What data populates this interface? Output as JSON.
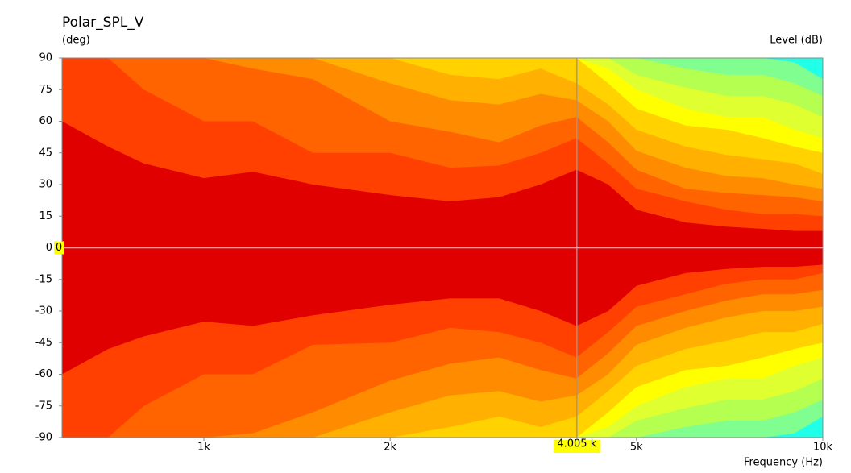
{
  "chart_data": {
    "type": "contour",
    "title": "Polar_SPL_V",
    "y_label": "(deg)",
    "z_label": "Level  (dB)",
    "x_label": "Frequency  (Hz)",
    "x_log": true,
    "xlim": [
      590,
      10000
    ],
    "xticks": [
      {
        "value": 1000,
        "label": "1k"
      },
      {
        "value": 2000,
        "label": "2k"
      },
      {
        "value": 5000,
        "label": "5k"
      },
      {
        "value": 10000,
        "label": "10k"
      }
    ],
    "ylim": [
      -90,
      90
    ],
    "yticks": [
      90,
      75,
      60,
      45,
      30,
      15,
      0,
      -15,
      -30,
      -45,
      -60,
      -75,
      -90
    ],
    "cursor": {
      "x": {
        "value": 4005,
        "label": "4.005 k"
      },
      "y": 0
    },
    "background_color": "#20ffe8",
    "x": [
      590,
      700,
      800,
      1000,
      1200,
      1500,
      2000,
      2500,
      3000,
      3500,
      4000,
      4500,
      5000,
      6000,
      7000,
      8000,
      9000,
      10000
    ],
    "series": [
      {
        "color": "#80ff90",
        "upper": [
          90,
          90,
          90,
          90,
          90,
          90,
          90,
          90,
          90,
          90,
          90,
          90,
          90,
          90,
          90,
          90,
          88,
          80
        ],
        "lower": [
          -90,
          -90,
          -90,
          -90,
          -90,
          -90,
          -90,
          -90,
          -90,
          -90,
          -90,
          -90,
          -90,
          -90,
          -90,
          -90,
          -88,
          -80
        ]
      },
      {
        "color": "#b4ff50",
        "upper": [
          90,
          90,
          90,
          90,
          90,
          90,
          90,
          90,
          90,
          90,
          90,
          90,
          90,
          85,
          82,
          82,
          78,
          72
        ],
        "lower": [
          -90,
          -90,
          -90,
          -90,
          -90,
          -90,
          -90,
          -90,
          -90,
          -90,
          -90,
          -90,
          -90,
          -85,
          -82,
          -82,
          -78,
          -72
        ]
      },
      {
        "color": "#e0ff30",
        "upper": [
          90,
          90,
          90,
          90,
          90,
          90,
          90,
          90,
          90,
          90,
          90,
          90,
          82,
          76,
          72,
          72,
          68,
          62
        ],
        "lower": [
          -90,
          -90,
          -90,
          -90,
          -90,
          -90,
          -90,
          -90,
          -90,
          -90,
          -90,
          -90,
          -82,
          -76,
          -72,
          -72,
          -68,
          -62
        ]
      },
      {
        "color": "#ffff00",
        "upper": [
          90,
          90,
          90,
          90,
          90,
          90,
          90,
          90,
          90,
          90,
          90,
          85,
          75,
          66,
          62,
          62,
          56,
          52
        ],
        "lower": [
          -90,
          -90,
          -90,
          -90,
          -90,
          -90,
          -90,
          -90,
          -90,
          -90,
          -90,
          -85,
          -75,
          -66,
          -62,
          -62,
          -56,
          -52
        ]
      },
      {
        "color": "#ffd200",
        "upper": [
          90,
          90,
          90,
          90,
          90,
          90,
          90,
          90,
          90,
          90,
          90,
          78,
          66,
          58,
          56,
          52,
          48,
          45
        ],
        "lower": [
          -90,
          -90,
          -90,
          -90,
          -90,
          -90,
          -90,
          -90,
          -90,
          -90,
          -90,
          -78,
          -66,
          -58,
          -56,
          -52,
          -48,
          -45
        ]
      },
      {
        "color": "#ffb000",
        "upper": [
          90,
          90,
          90,
          90,
          90,
          90,
          90,
          82,
          80,
          85,
          78,
          68,
          56,
          48,
          44,
          42,
          40,
          35
        ],
        "lower": [
          -90,
          -90,
          -90,
          -90,
          -90,
          -90,
          -90,
          -85,
          -80,
          -85,
          -80,
          -68,
          -56,
          -48,
          -44,
          -40,
          -40,
          -36
        ]
      },
      {
        "color": "#ff8c00",
        "upper": [
          90,
          90,
          90,
          90,
          90,
          90,
          78,
          70,
          68,
          73,
          70,
          60,
          46,
          38,
          34,
          33,
          30,
          28
        ],
        "lower": [
          -90,
          -90,
          -90,
          -90,
          -90,
          -90,
          -78,
          -70,
          -68,
          -73,
          -70,
          -60,
          -46,
          -38,
          -33,
          -30,
          -30,
          -28
        ]
      },
      {
        "color": "#ff6400",
        "upper": [
          90,
          90,
          90,
          90,
          85,
          80,
          60,
          55,
          50,
          58,
          62,
          50,
          37,
          28,
          26,
          25,
          24,
          22
        ],
        "lower": [
          -90,
          -90,
          -90,
          -90,
          -88,
          -78,
          -63,
          -55,
          -52,
          -58,
          -62,
          -50,
          -37,
          -30,
          -25,
          -22,
          -22,
          -20
        ]
      },
      {
        "color": "#ff4000",
        "upper": [
          90,
          90,
          75,
          60,
          60,
          45,
          45,
          38,
          39,
          45,
          52,
          40,
          28,
          22,
          18,
          16,
          16,
          15
        ],
        "lower": [
          -90,
          -90,
          -75,
          -60,
          -60,
          -46,
          -45,
          -38,
          -40,
          -45,
          -52,
          -40,
          -28,
          -22,
          -17,
          -15,
          -15,
          -12
        ]
      },
      {
        "color": "#ff1400",
        "upper": [
          60,
          48,
          40,
          33,
          36,
          30,
          25,
          22,
          24,
          30,
          37,
          30,
          18,
          12,
          10,
          9,
          8,
          8
        ],
        "lower": [
          -60,
          -48,
          -42,
          -35,
          -37,
          -32,
          -27,
          -24,
          -24,
          -30,
          -37,
          -30,
          -18,
          -12,
          -10,
          -9,
          -9,
          -8
        ]
      }
    ],
    "inner_color": "#e00000"
  }
}
